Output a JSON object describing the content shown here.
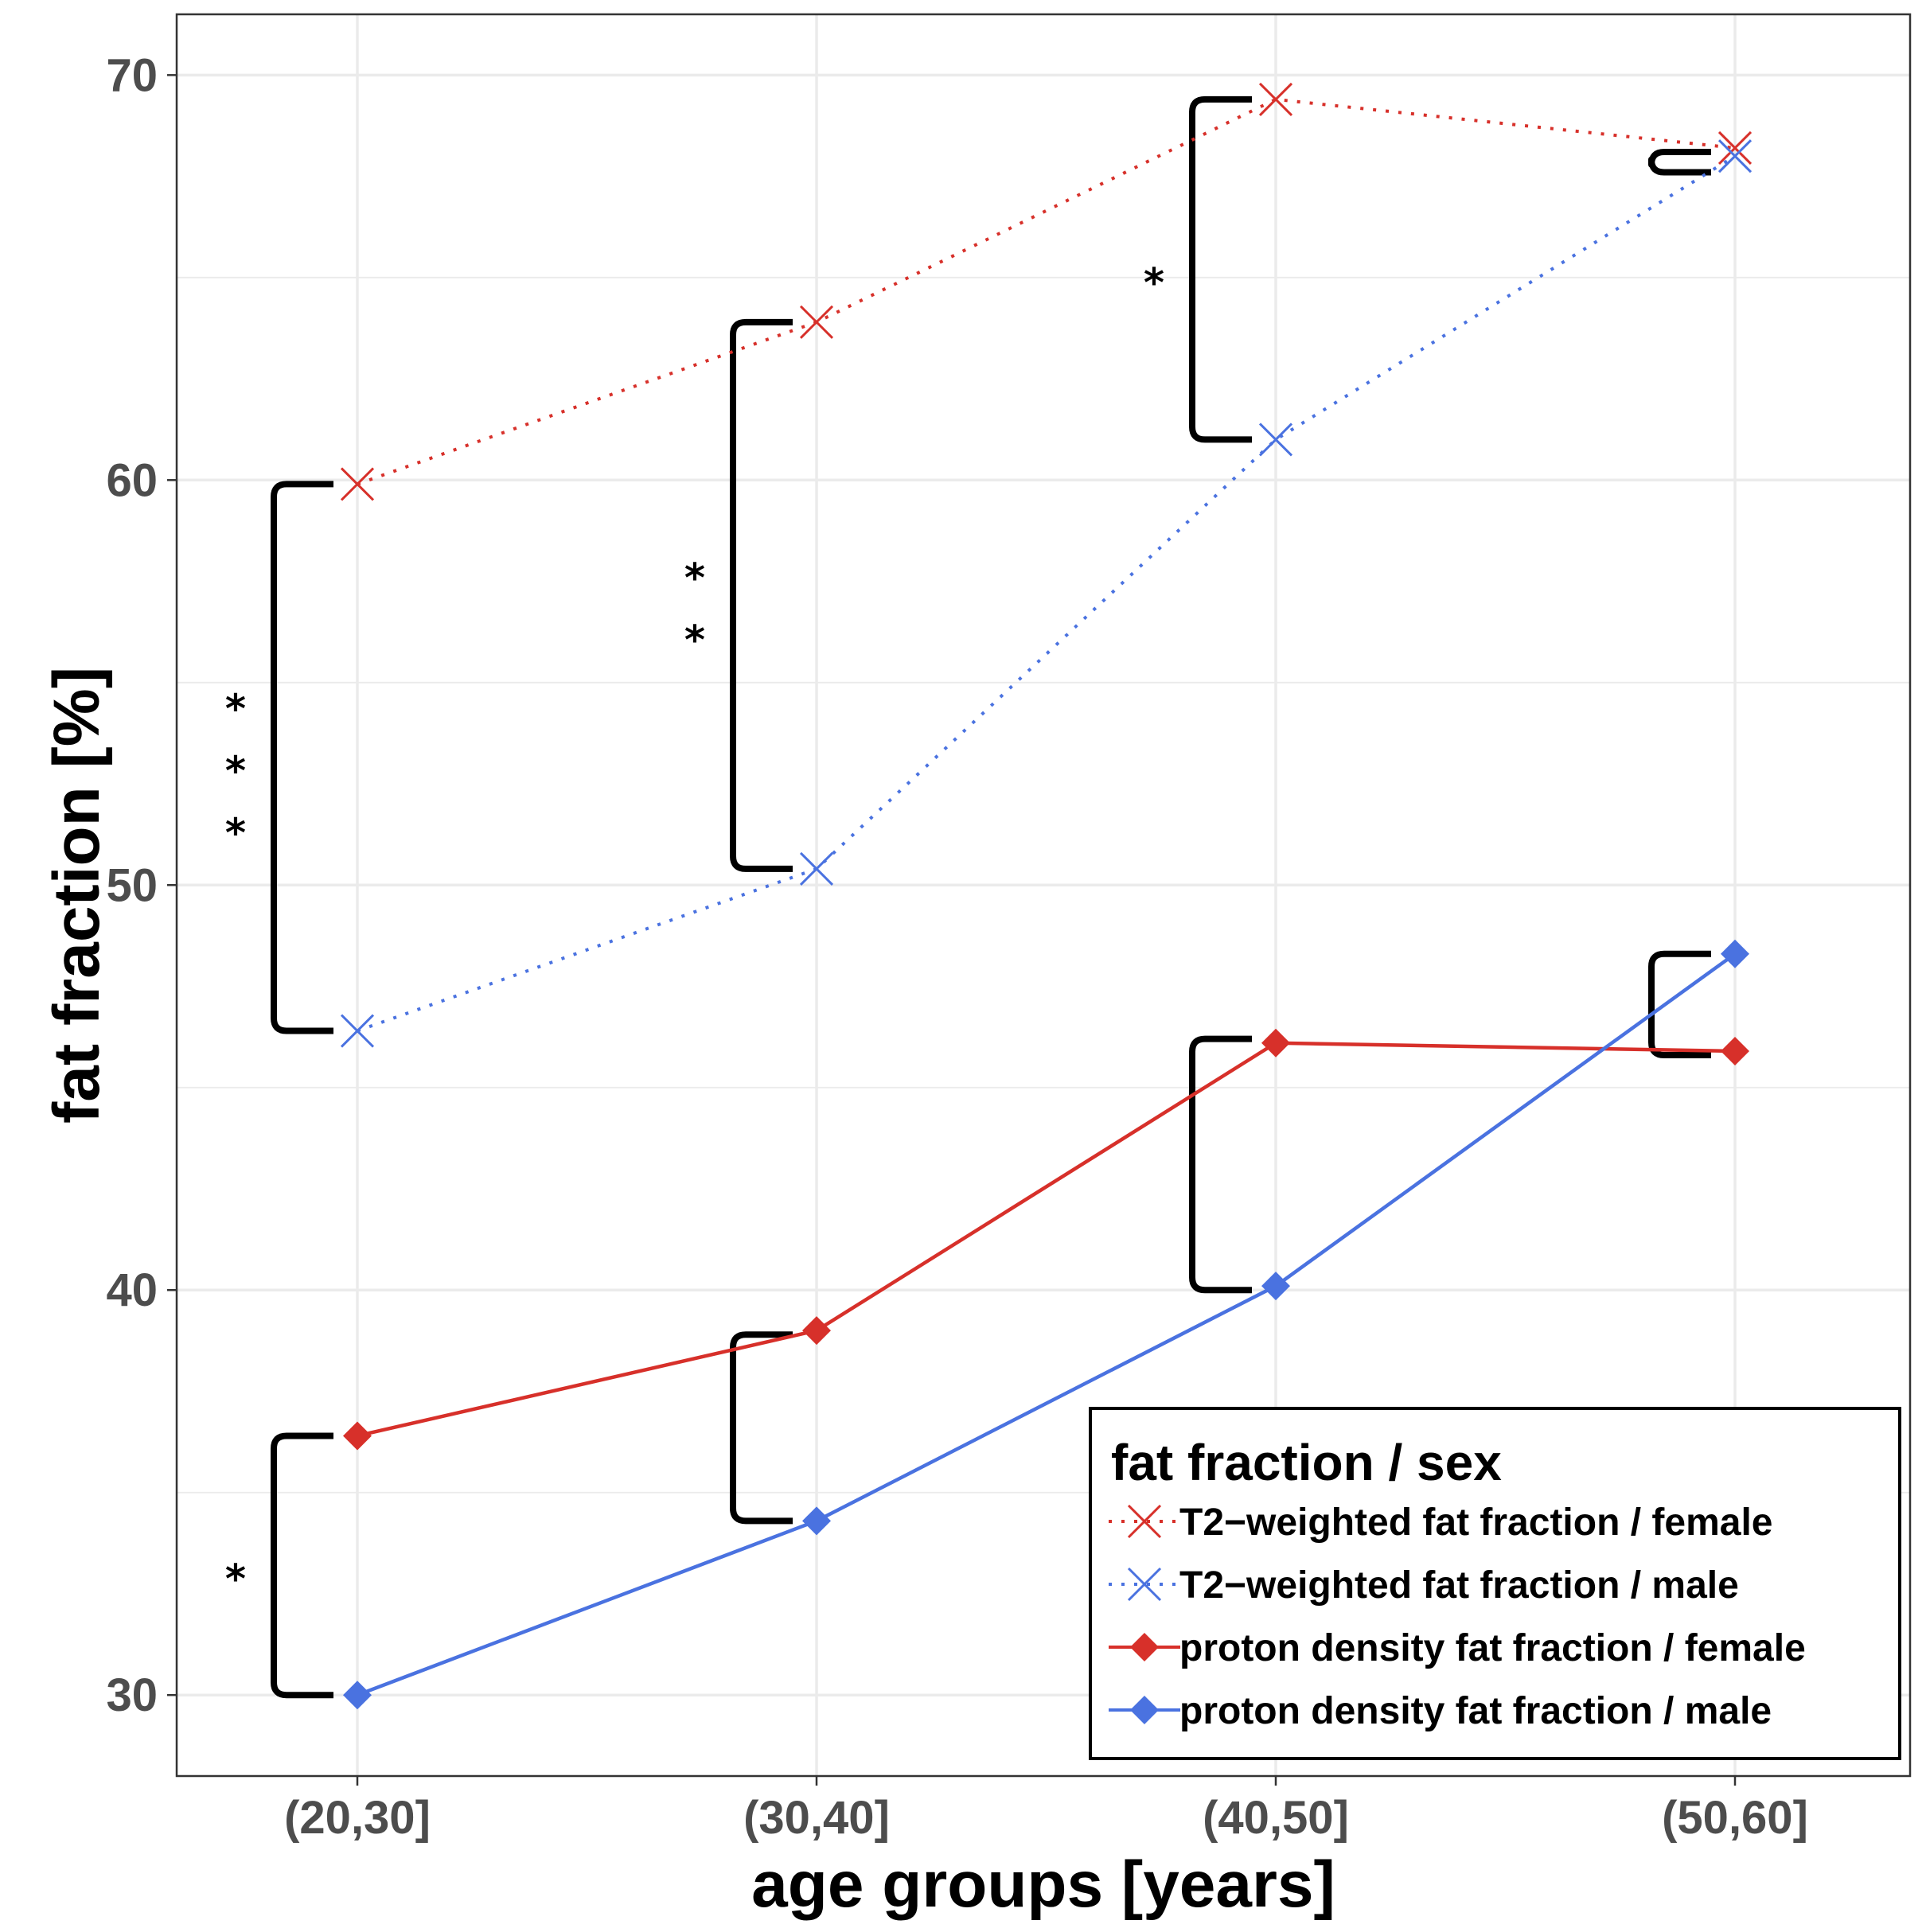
{
  "chart_data": {
    "type": "line",
    "title": "",
    "xlabel": "age groups [years]",
    "ylabel": "fat fraction [%]",
    "categories": [
      "(20,30]",
      "(30,40]",
      "(40,50]",
      "(50,60]"
    ],
    "ylim": [
      28,
      71.5
    ],
    "yticks": [
      30,
      40,
      50,
      60,
      70
    ],
    "grid": true,
    "series": [
      {
        "name": "T2−weighted fat fraction / female",
        "values": [
          59.9,
          63.9,
          69.4,
          68.2
        ],
        "color": "#d7302a",
        "linestyle": "dotted",
        "marker": "x"
      },
      {
        "name": "T2−weighted fat fraction / male",
        "values": [
          46.4,
          50.4,
          61.0,
          68.0
        ],
        "color": "#4a72e0",
        "linestyle": "dotted",
        "marker": "x"
      },
      {
        "name": "proton density fat fraction / female",
        "values": [
          36.4,
          39.0,
          46.1,
          45.9
        ],
        "color": "#d7302a",
        "linestyle": "solid",
        "marker": "diamond"
      },
      {
        "name": "proton density fat fraction / male",
        "values": [
          30.0,
          34.3,
          40.1,
          48.3
        ],
        "color": "#4a72e0",
        "linestyle": "solid",
        "marker": "diamond"
      }
    ],
    "legend": {
      "title": "fat fraction / sex",
      "position": "bottom-right"
    },
    "significance": [
      {
        "group": "(20,30]",
        "pair": "T2−weighted",
        "label": "***",
        "range": [
          46.4,
          59.9
        ]
      },
      {
        "group": "(30,40]",
        "pair": "T2−weighted",
        "label": "**",
        "range": [
          50.4,
          63.9
        ]
      },
      {
        "group": "(40,50]",
        "pair": "T2−weighted",
        "label": "*",
        "range": [
          61.0,
          69.4
        ]
      },
      {
        "group": "(50,60]",
        "pair": "T2−weighted",
        "label": "",
        "range": [
          67.6,
          68.1
        ]
      },
      {
        "group": "(20,30]",
        "pair": "proton density",
        "label": "*",
        "range": [
          30.0,
          36.4
        ]
      },
      {
        "group": "(30,40]",
        "pair": "proton density",
        "label": "",
        "range": [
          34.3,
          38.9
        ]
      },
      {
        "group": "(40,50]",
        "pair": "proton density",
        "label": "",
        "range": [
          40.0,
          46.2
        ]
      },
      {
        "group": "(50,60]",
        "pair": "proton density",
        "label": "",
        "range": [
          45.8,
          48.3
        ]
      }
    ]
  }
}
